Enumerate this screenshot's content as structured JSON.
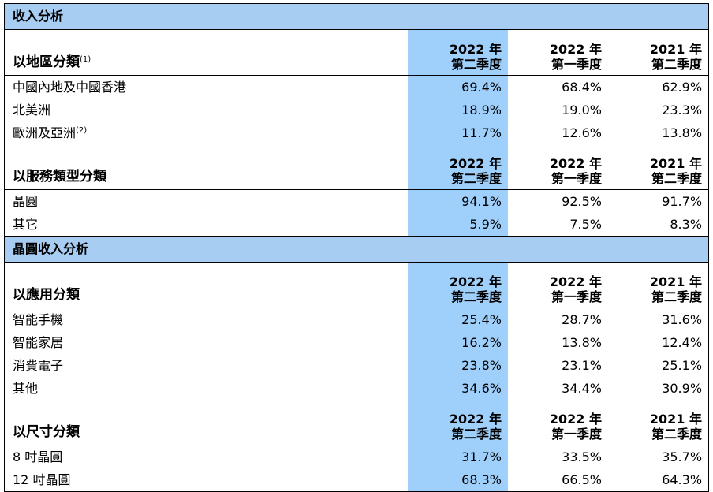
{
  "revenue": {
    "title": "收入分析",
    "region": {
      "label": "以地區分類",
      "note": "(1)",
      "cols": [
        {
          "year": "2022 年",
          "quarter": "第二季度"
        },
        {
          "year": "2022 年",
          "quarter": "第一季度"
        },
        {
          "year": "2021 年",
          "quarter": "第二季度"
        }
      ],
      "rows": [
        {
          "label": "中國內地及中國香港",
          "note": "",
          "v": [
            "69.4%",
            "68.4%",
            "62.9%"
          ]
        },
        {
          "label": "北美洲",
          "note": "",
          "v": [
            "18.9%",
            "19.0%",
            "23.3%"
          ]
        },
        {
          "label": "歐洲及亞洲",
          "note": "(2)",
          "v": [
            "11.7%",
            "12.6%",
            "13.8%"
          ]
        }
      ]
    },
    "service": {
      "label": "以服務類型分類",
      "cols": [
        {
          "year": "2022 年",
          "quarter": "第二季度"
        },
        {
          "year": "2022 年",
          "quarter": "第一季度"
        },
        {
          "year": "2021 年",
          "quarter": "第二季度"
        }
      ],
      "rows": [
        {
          "label": "晶圓",
          "v": [
            "94.1%",
            "92.5%",
            "91.7%"
          ]
        },
        {
          "label": "其它",
          "v": [
            "5.9%",
            "7.5%",
            "8.3%"
          ]
        }
      ]
    }
  },
  "wafer": {
    "title": "晶圓收入分析",
    "application": {
      "label": "以應用分類",
      "cols": [
        {
          "year": "2022 年",
          "quarter": "第二季度"
        },
        {
          "year": "2022 年",
          "quarter": "第一季度"
        },
        {
          "year": "2021 年",
          "quarter": "第二季度"
        }
      ],
      "rows": [
        {
          "label": "智能手機",
          "v": [
            "25.4%",
            "28.7%",
            "31.6%"
          ]
        },
        {
          "label": "智能家居",
          "v": [
            "16.2%",
            "13.8%",
            "12.4%"
          ]
        },
        {
          "label": "消費電子",
          "v": [
            "23.8%",
            "23.1%",
            "25.1%"
          ]
        },
        {
          "label": "其他",
          "v": [
            "34.6%",
            "34.4%",
            "30.9%"
          ]
        }
      ]
    },
    "size": {
      "label": "以尺寸分類",
      "cols": [
        {
          "year": "2022 年",
          "quarter": "第二季度"
        },
        {
          "year": "2022 年",
          "quarter": "第一季度"
        },
        {
          "year": "2021 年",
          "quarter": "第二季度"
        }
      ],
      "rows": [
        {
          "label": "8 吋晶圓",
          "v": [
            "31.7%",
            "33.5%",
            "35.7%"
          ]
        },
        {
          "label": "12 吋晶圓",
          "v": [
            "68.3%",
            "66.5%",
            "64.3%"
          ]
        }
      ]
    }
  }
}
